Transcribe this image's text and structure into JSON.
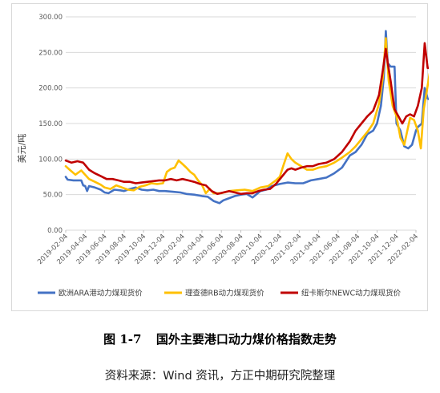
{
  "chart_data": {
    "type": "line",
    "ylabel": "美元/吨",
    "ylim": [
      0,
      300
    ],
    "yticks": [
      "0.00",
      "50.00",
      "100.00",
      "150.00",
      "200.00",
      "250.00",
      "300.00"
    ],
    "xlabels": [
      "2019-02-04",
      "2019-04-04",
      "2019-06-04",
      "2019-08-04",
      "2019-10-04",
      "2019-12-04",
      "2020-02-04",
      "2020-04-04",
      "2020-06-04",
      "2020-08-04",
      "2020-10-04",
      "2020-12-04",
      "2021-02-04",
      "2021-04-04",
      "2021-06-04",
      "2021-08-04",
      "2021-10-04",
      "2021-12-04",
      "2022-02-04"
    ],
    "grid": "horizontal",
    "legend_position": "bottom",
    "series": [
      {
        "name": "欧洲ARA港动力煤现货价",
        "color": "#4472C4",
        "points": [
          [
            0,
            75
          ],
          [
            0.1,
            71
          ],
          [
            0.4,
            70
          ],
          [
            0.8,
            70
          ],
          [
            0.9,
            63
          ],
          [
            1.0,
            62
          ],
          [
            1.1,
            55
          ],
          [
            1.2,
            62
          ],
          [
            1.5,
            60
          ],
          [
            1.8,
            57
          ],
          [
            2.0,
            53
          ],
          [
            2.2,
            52
          ],
          [
            2.5,
            57
          ],
          [
            2.8,
            56
          ],
          [
            3.0,
            55
          ],
          [
            3.3,
            58
          ],
          [
            3.6,
            60
          ],
          [
            3.9,
            57
          ],
          [
            4.2,
            56
          ],
          [
            4.5,
            57
          ],
          [
            4.8,
            55
          ],
          [
            5.1,
            55
          ],
          [
            5.5,
            54
          ],
          [
            5.9,
            53
          ],
          [
            6.2,
            51
          ],
          [
            6.6,
            50
          ],
          [
            7.0,
            48
          ],
          [
            7.3,
            47
          ],
          [
            7.6,
            41
          ],
          [
            7.9,
            38
          ],
          [
            8.1,
            42
          ],
          [
            8.4,
            45
          ],
          [
            8.7,
            48
          ],
          [
            9.0,
            50
          ],
          [
            9.3,
            51
          ],
          [
            9.6,
            46
          ],
          [
            10.0,
            55
          ],
          [
            10.3,
            57
          ],
          [
            10.6,
            62
          ],
          [
            11.0,
            65
          ],
          [
            11.4,
            67
          ],
          [
            11.8,
            66
          ],
          [
            12.2,
            66
          ],
          [
            12.6,
            70
          ],
          [
            13.0,
            72
          ],
          [
            13.4,
            74
          ],
          [
            13.8,
            80
          ],
          [
            14.2,
            88
          ],
          [
            14.6,
            105
          ],
          [
            14.9,
            110
          ],
          [
            15.2,
            120
          ],
          [
            15.5,
            135
          ],
          [
            15.8,
            140
          ],
          [
            16.0,
            150
          ],
          [
            16.2,
            175
          ],
          [
            16.35,
            215
          ],
          [
            16.45,
            280
          ],
          [
            16.55,
            235
          ],
          [
            16.7,
            230
          ],
          [
            16.9,
            230
          ],
          [
            17.0,
            150
          ],
          [
            17.2,
            140
          ],
          [
            17.4,
            118
          ],
          [
            17.6,
            115
          ],
          [
            17.8,
            120
          ],
          [
            18.0,
            140
          ],
          [
            18.1,
            145
          ],
          [
            18.3,
            150
          ],
          [
            18.45,
            200
          ],
          [
            18.6,
            185
          ],
          [
            18.75,
            183
          ]
        ]
      },
      {
        "name": "理查德RB动力煤现货价",
        "color": "#FFC000",
        "points": [
          [
            0,
            90
          ],
          [
            0.2,
            85
          ],
          [
            0.5,
            78
          ],
          [
            0.8,
            84
          ],
          [
            1.2,
            72
          ],
          [
            1.5,
            68
          ],
          [
            1.8,
            64
          ],
          [
            2.0,
            60
          ],
          [
            2.3,
            58
          ],
          [
            2.6,
            63
          ],
          [
            2.9,
            60
          ],
          [
            3.2,
            57
          ],
          [
            3.5,
            56
          ],
          [
            3.8,
            61
          ],
          [
            4.1,
            63
          ],
          [
            4.4,
            66
          ],
          [
            4.7,
            65
          ],
          [
            5.0,
            66
          ],
          [
            5.2,
            82
          ],
          [
            5.4,
            86
          ],
          [
            5.6,
            88
          ],
          [
            5.8,
            98
          ],
          [
            6.0,
            93
          ],
          [
            6.2,
            88
          ],
          [
            6.4,
            82
          ],
          [
            6.6,
            78
          ],
          [
            6.8,
            70
          ],
          [
            7.0,
            64
          ],
          [
            7.2,
            52
          ],
          [
            7.4,
            58
          ],
          [
            7.6,
            52
          ],
          [
            7.8,
            52
          ],
          [
            8.0,
            52
          ],
          [
            8.4,
            55
          ],
          [
            8.8,
            56
          ],
          [
            9.2,
            57
          ],
          [
            9.6,
            55
          ],
          [
            10.0,
            60
          ],
          [
            10.4,
            62
          ],
          [
            10.8,
            70
          ],
          [
            11.0,
            75
          ],
          [
            11.2,
            92
          ],
          [
            11.4,
            108
          ],
          [
            11.6,
            100
          ],
          [
            11.8,
            95
          ],
          [
            12.1,
            90
          ],
          [
            12.4,
            85
          ],
          [
            12.7,
            85
          ],
          [
            13.0,
            88
          ],
          [
            13.4,
            90
          ],
          [
            13.8,
            95
          ],
          [
            14.2,
            102
          ],
          [
            14.6,
            110
          ],
          [
            14.9,
            118
          ],
          [
            15.2,
            128
          ],
          [
            15.5,
            138
          ],
          [
            15.8,
            150
          ],
          [
            16.1,
            178
          ],
          [
            16.3,
            215
          ],
          [
            16.45,
            270
          ],
          [
            16.6,
            210
          ],
          [
            16.8,
            175
          ],
          [
            17.0,
            160
          ],
          [
            17.2,
            130
          ],
          [
            17.4,
            120
          ],
          [
            17.7,
            158
          ],
          [
            17.9,
            155
          ],
          [
            18.1,
            140
          ],
          [
            18.25,
            115
          ],
          [
            18.4,
            170
          ],
          [
            18.55,
            195
          ],
          [
            18.7,
            220
          ],
          [
            18.75,
            222
          ]
        ]
      },
      {
        "name": "纽卡斯尔NEWC动力煤现货价",
        "color": "#C00000",
        "points": [
          [
            0,
            98
          ],
          [
            0.3,
            95
          ],
          [
            0.6,
            97
          ],
          [
            0.9,
            95
          ],
          [
            1.2,
            85
          ],
          [
            1.5,
            80
          ],
          [
            1.8,
            76
          ],
          [
            2.1,
            72
          ],
          [
            2.4,
            72
          ],
          [
            2.7,
            70
          ],
          [
            3.0,
            68
          ],
          [
            3.3,
            68
          ],
          [
            3.6,
            66
          ],
          [
            3.9,
            67
          ],
          [
            4.2,
            68
          ],
          [
            4.5,
            69
          ],
          [
            4.8,
            70
          ],
          [
            5.1,
            70
          ],
          [
            5.4,
            72
          ],
          [
            5.7,
            70
          ],
          [
            6.0,
            72
          ],
          [
            6.3,
            70
          ],
          [
            6.6,
            68
          ],
          [
            6.9,
            65
          ],
          [
            7.2,
            63
          ],
          [
            7.5,
            55
          ],
          [
            7.8,
            51
          ],
          [
            8.1,
            53
          ],
          [
            8.4,
            55
          ],
          [
            8.7,
            53
          ],
          [
            9.0,
            51
          ],
          [
            9.3,
            52
          ],
          [
            9.6,
            52
          ],
          [
            9.9,
            55
          ],
          [
            10.2,
            57
          ],
          [
            10.5,
            58
          ],
          [
            10.8,
            65
          ],
          [
            11.1,
            75
          ],
          [
            11.4,
            85
          ],
          [
            11.6,
            87
          ],
          [
            11.8,
            85
          ],
          [
            12.1,
            88
          ],
          [
            12.4,
            90
          ],
          [
            12.7,
            90
          ],
          [
            13.0,
            93
          ],
          [
            13.4,
            95
          ],
          [
            13.8,
            100
          ],
          [
            14.2,
            110
          ],
          [
            14.6,
            125
          ],
          [
            14.9,
            140
          ],
          [
            15.2,
            150
          ],
          [
            15.5,
            160
          ],
          [
            15.8,
            168
          ],
          [
            16.1,
            190
          ],
          [
            16.3,
            225
          ],
          [
            16.45,
            255
          ],
          [
            16.55,
            235
          ],
          [
            16.7,
            210
          ],
          [
            16.9,
            170
          ],
          [
            17.1,
            160
          ],
          [
            17.3,
            150
          ],
          [
            17.5,
            160
          ],
          [
            17.7,
            163
          ],
          [
            17.9,
            160
          ],
          [
            18.1,
            175
          ],
          [
            18.3,
            200
          ],
          [
            18.45,
            263
          ],
          [
            18.6,
            228
          ],
          [
            18.75,
            228
          ]
        ]
      }
    ]
  },
  "caption": {
    "figure_number": "图 1-7",
    "title": "国外主要港口动力煤价格指数走势"
  },
  "source": "资料来源：Wind 资讯，方正中期研究院整理"
}
